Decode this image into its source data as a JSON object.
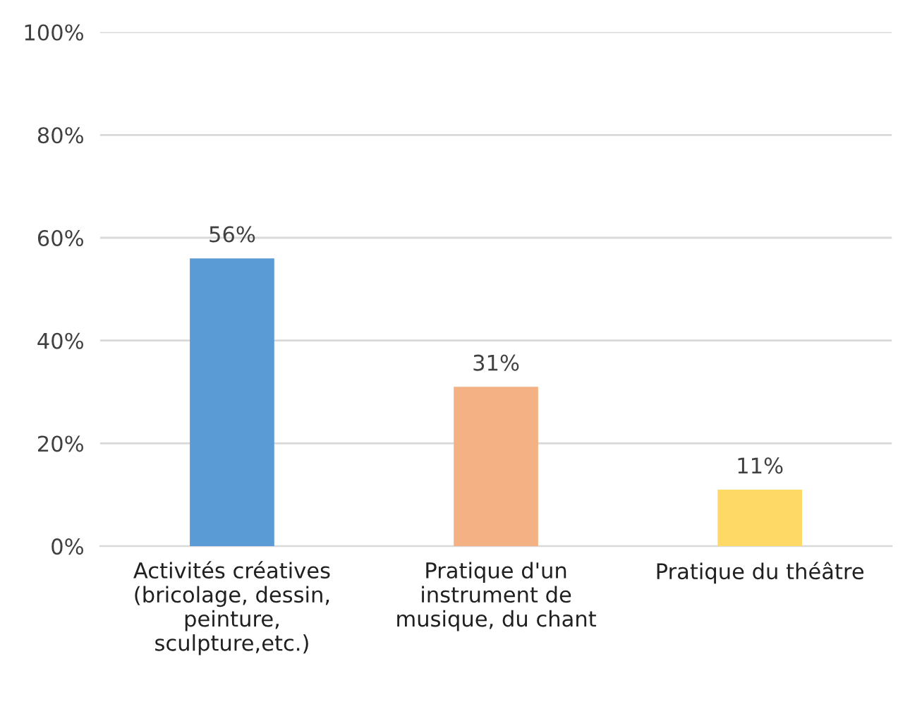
{
  "chart_data": {
    "type": "bar",
    "categories": [
      "Activités créatives\n(bricolage, dessin,\npeinture,\nsculpture,etc.)",
      "Pratique d'un\ninstrument de\nmusique, du chant",
      "Pratique du théâtre"
    ],
    "values": [
      56,
      31,
      11
    ],
    "colors": [
      "#5b9bd5",
      "#f4b183",
      "#ffd966"
    ],
    "value_labels": [
      "56%",
      "31%",
      "11%"
    ],
    "ylim": [
      0,
      100
    ],
    "yticks": [
      {
        "value": 0,
        "label": "0%"
      },
      {
        "value": 20,
        "label": "20%"
      },
      {
        "value": 40,
        "label": "40%"
      },
      {
        "value": 60,
        "label": "60%"
      },
      {
        "value": 80,
        "label": "80%"
      },
      {
        "value": 100,
        "label": "100%"
      }
    ],
    "grid": "y",
    "legend": false
  }
}
